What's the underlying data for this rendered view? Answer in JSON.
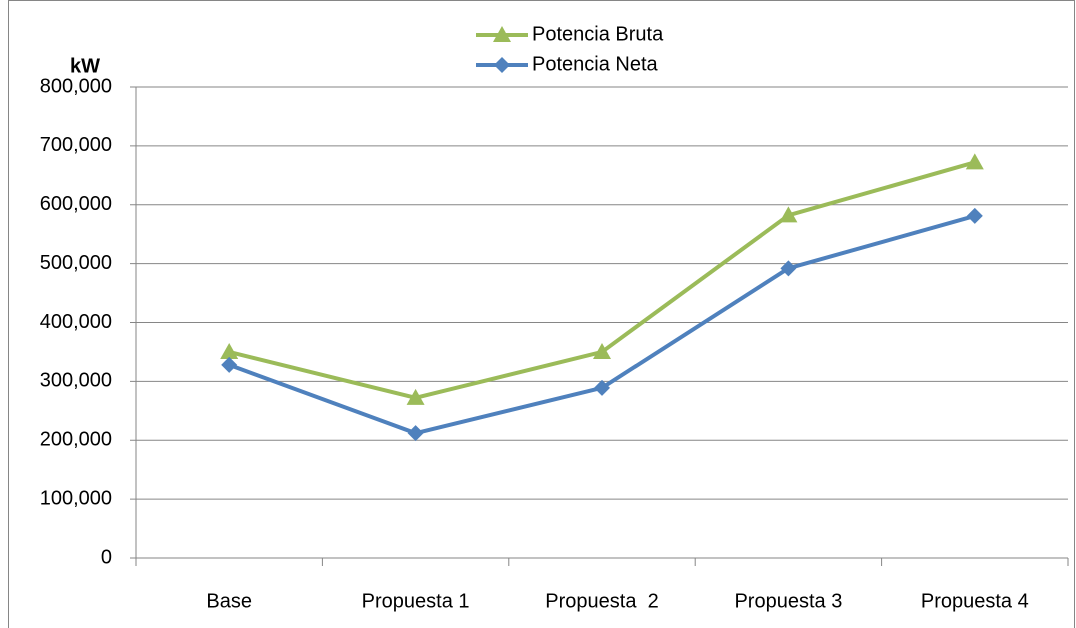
{
  "chart_data": {
    "type": "line",
    "y_axis_label": "kW",
    "categories": [
      "Base",
      "Propuesta 1",
      "Propuesta  2",
      "Propuesta 3",
      "Propuesta 4"
    ],
    "series": [
      {
        "name": "Potencia Bruta",
        "color": "#9bbb59",
        "marker": "triangle",
        "values": [
          350000,
          272000,
          350000,
          582000,
          672000
        ]
      },
      {
        "name": "Potencia Neta",
        "color": "#4f81bd",
        "marker": "diamond",
        "values": [
          328000,
          212000,
          289000,
          492000,
          581000
        ]
      }
    ],
    "ylim": [
      0,
      800000
    ],
    "yticks": [
      0,
      {
        "value": 100000,
        "label": "100,000"
      },
      {
        "value": 200000,
        "label": "200,000"
      },
      {
        "value": 300000,
        "label": "300,000"
      },
      {
        "value": 400000,
        "label": "400,000"
      },
      {
        "value": 500000,
        "label": "500,000"
      },
      {
        "value": 600000,
        "label": "600,000"
      },
      {
        "value": 700000,
        "label": "700,000"
      },
      {
        "value": 800000,
        "label": "800,000"
      }
    ],
    "grid": true,
    "legend": "top"
  }
}
